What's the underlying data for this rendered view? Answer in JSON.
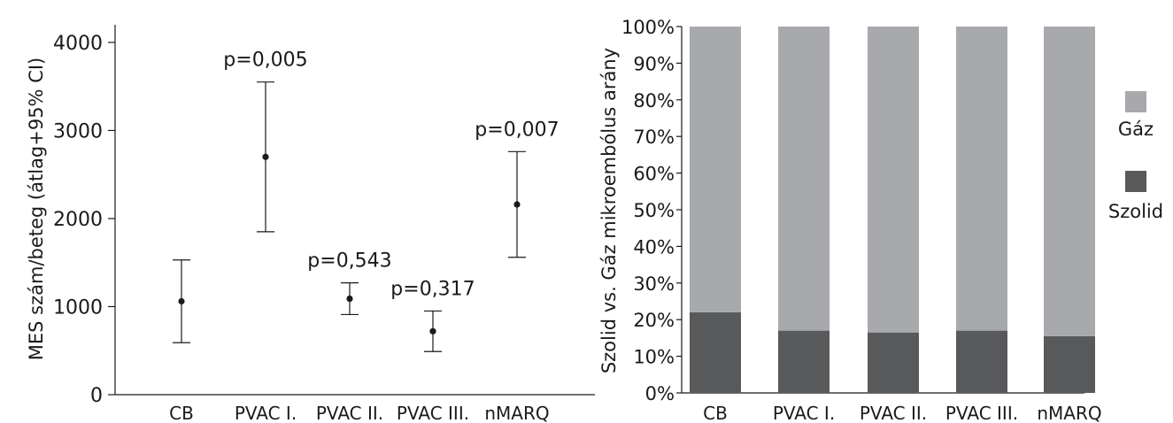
{
  "chart_data": [
    {
      "type": "scatter",
      "subtype": "mean-with-error-bars",
      "ylabel": "MES szám/beteg (átlag+95% CI)",
      "xlabel": "",
      "ylim": [
        0,
        4200
      ],
      "yticks": [
        0,
        1000,
        2000,
        3000,
        4000
      ],
      "categories": [
        "CB",
        "PVAC I.",
        "PVAC II.",
        "PVAC III.",
        "nMARQ"
      ],
      "points": [
        {
          "category": "CB",
          "mean": 1060,
          "lower": 590,
          "upper": 1530,
          "annotation": ""
        },
        {
          "category": "PVAC I.",
          "mean": 2700,
          "lower": 1850,
          "upper": 3550,
          "annotation": "p=0,005"
        },
        {
          "category": "PVAC II.",
          "mean": 1090,
          "lower": 910,
          "upper": 1270,
          "annotation": "p=0,543"
        },
        {
          "category": "PVAC III.",
          "mean": 720,
          "lower": 490,
          "upper": 950,
          "annotation": "p=0,317"
        },
        {
          "category": "nMARQ",
          "mean": 2160,
          "lower": 1560,
          "upper": 2760,
          "annotation": "p=0,007"
        }
      ],
      "grid": false
    },
    {
      "type": "bar",
      "subtype": "stacked-100-percent",
      "ylabel": "Szolid vs. Gáz mikroembólus arány",
      "xlabel": "",
      "ylim": [
        0,
        100
      ],
      "yticks": [
        "0%",
        "10%",
        "20%",
        "30%",
        "40%",
        "50%",
        "60%",
        "70%",
        "80%",
        "90%",
        "100%"
      ],
      "categories": [
        "CB",
        "PVAC I.",
        "PVAC II.",
        "PVAC III.",
        "nMARQ"
      ],
      "series": [
        {
          "name": "Szolid",
          "color": "#58595b",
          "values": [
            22,
            17,
            16.5,
            17,
            15.5
          ]
        },
        {
          "name": "Gáz",
          "color": "#a7a9ac",
          "values": [
            78,
            83,
            83.5,
            83,
            84.5
          ]
        }
      ],
      "legend": {
        "placement": "right",
        "order": [
          "Gáz",
          "Szolid"
        ]
      },
      "grid": false
    }
  ]
}
